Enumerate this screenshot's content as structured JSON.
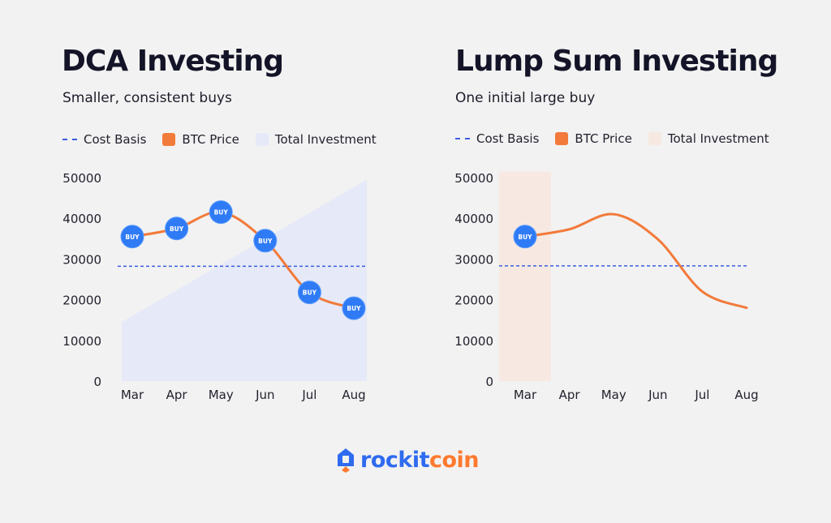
{
  "colors": {
    "cost_basis": "#3a5fe0",
    "btc_price": "#f27a3a",
    "dca_investment_fill": "#e6e9f7",
    "lump_investment_fill": "#f7e9e2",
    "buy_marker": "#2f7bf5",
    "logo_blue": "#2f6bf0",
    "logo_orange": "#ff7a2f"
  },
  "logo": {
    "part1": "rockit",
    "part2": "coin"
  },
  "chart_data": [
    {
      "type": "line",
      "title": "DCA Investing",
      "subtitle": "Smaller, consistent buys",
      "legend": [
        "Cost Basis",
        "BTC Price",
        "Total Investment"
      ],
      "categories": [
        "Mar",
        "Apr",
        "May",
        "Jun",
        "Jul",
        "Aug"
      ],
      "yticks": [
        0,
        10000,
        20000,
        30000,
        40000,
        50000
      ],
      "ylim": [
        0,
        50000
      ],
      "series": [
        {
          "name": "BTC Price",
          "values": [
            35500,
            37500,
            41500,
            34500,
            21800,
            17900
          ]
        },
        {
          "name": "Total Investment",
          "values": [
            14500,
            21500,
            28500,
            35500,
            42500,
            49500
          ]
        },
        {
          "name": "Cost Basis",
          "values": [
            28200,
            28200,
            28200,
            28200,
            28200,
            28200
          ]
        }
      ],
      "buy_label": "BUY",
      "buy_points": [
        "Mar",
        "Apr",
        "May",
        "Jun",
        "Jul",
        "Aug"
      ]
    },
    {
      "type": "line",
      "title": "Lump Sum Investing",
      "subtitle": "One initial large buy",
      "legend": [
        "Cost Basis",
        "BTC Price",
        "Total Investment"
      ],
      "categories": [
        "Mar",
        "Apr",
        "May",
        "Jun",
        "Jul",
        "Aug"
      ],
      "yticks": [
        0,
        10000,
        20000,
        30000,
        40000,
        50000
      ],
      "ylim": [
        0,
        50000
      ],
      "series": [
        {
          "name": "BTC Price",
          "values": [
            35500,
            37300,
            41000,
            34800,
            22000,
            18000
          ]
        },
        {
          "name": "Total Investment",
          "values": [
            51500,
            null,
            null,
            null,
            null,
            null
          ]
        },
        {
          "name": "Cost Basis",
          "values": [
            28300,
            28300,
            28300,
            28300,
            28300,
            28300
          ]
        }
      ],
      "buy_label": "BUY",
      "buy_points": [
        "Mar"
      ]
    }
  ]
}
